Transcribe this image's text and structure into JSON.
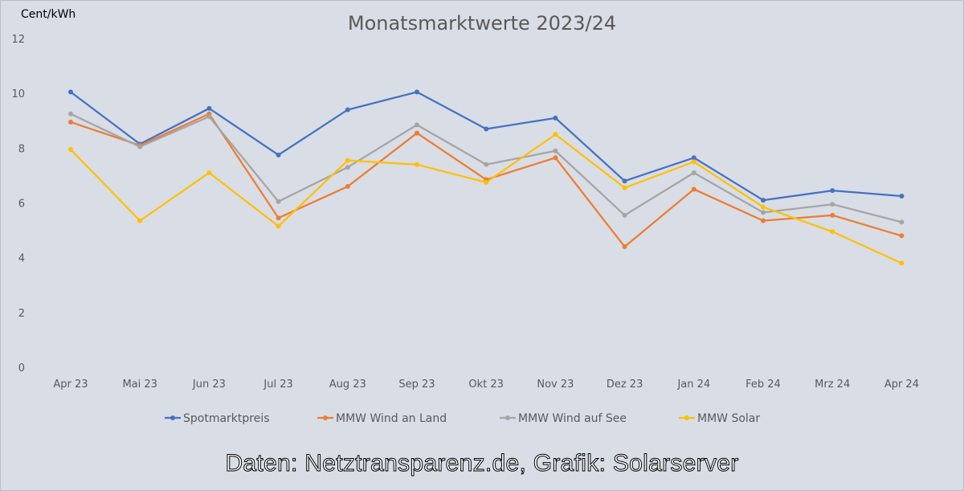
{
  "chart_data": {
    "type": "line",
    "title": "Monatsmarktwerte 2023/24",
    "ylabel": "Cent/kWh",
    "xlabel": "",
    "ylim": [
      0,
      12
    ],
    "yticks": [
      0,
      2,
      4,
      6,
      8,
      10,
      12
    ],
    "grid": false,
    "legend_position": "bottom",
    "categories": [
      "Apr 23",
      "Mai 23",
      "Jun 23",
      "Jul 23",
      "Aug 23",
      "Sep 23",
      "Okt 23",
      "Nov 23",
      "Dez 23",
      "Jan 24",
      "Feb 24",
      "Mrz 24",
      "Apr 24"
    ],
    "series": [
      {
        "name": "Spotmarktpreis",
        "color": "#4472c4",
        "values": [
          10.05,
          8.15,
          9.45,
          7.75,
          9.4,
          10.05,
          8.7,
          9.1,
          6.8,
          7.65,
          6.1,
          6.45,
          6.25
        ]
      },
      {
        "name": "MMW Wind an Land",
        "color": "#ed7d31",
        "values": [
          8.95,
          8.1,
          9.25,
          5.45,
          6.6,
          8.55,
          6.85,
          7.65,
          4.4,
          6.5,
          5.35,
          5.55,
          4.8
        ]
      },
      {
        "name": "MMW Wind auf See",
        "color": "#a5a5a5",
        "values": [
          9.25,
          8.05,
          9.15,
          6.05,
          7.3,
          8.85,
          7.4,
          7.9,
          5.55,
          7.1,
          5.65,
          5.95,
          5.3
        ]
      },
      {
        "name": "MMW Solar",
        "color": "#ffc000",
        "values": [
          7.95,
          5.35,
          7.1,
          5.15,
          7.55,
          7.4,
          6.75,
          8.5,
          6.55,
          7.5,
          5.85,
          4.95,
          3.8
        ]
      }
    ]
  },
  "credit": "Daten: Netztransparenz.de, Grafik: Solarserver"
}
